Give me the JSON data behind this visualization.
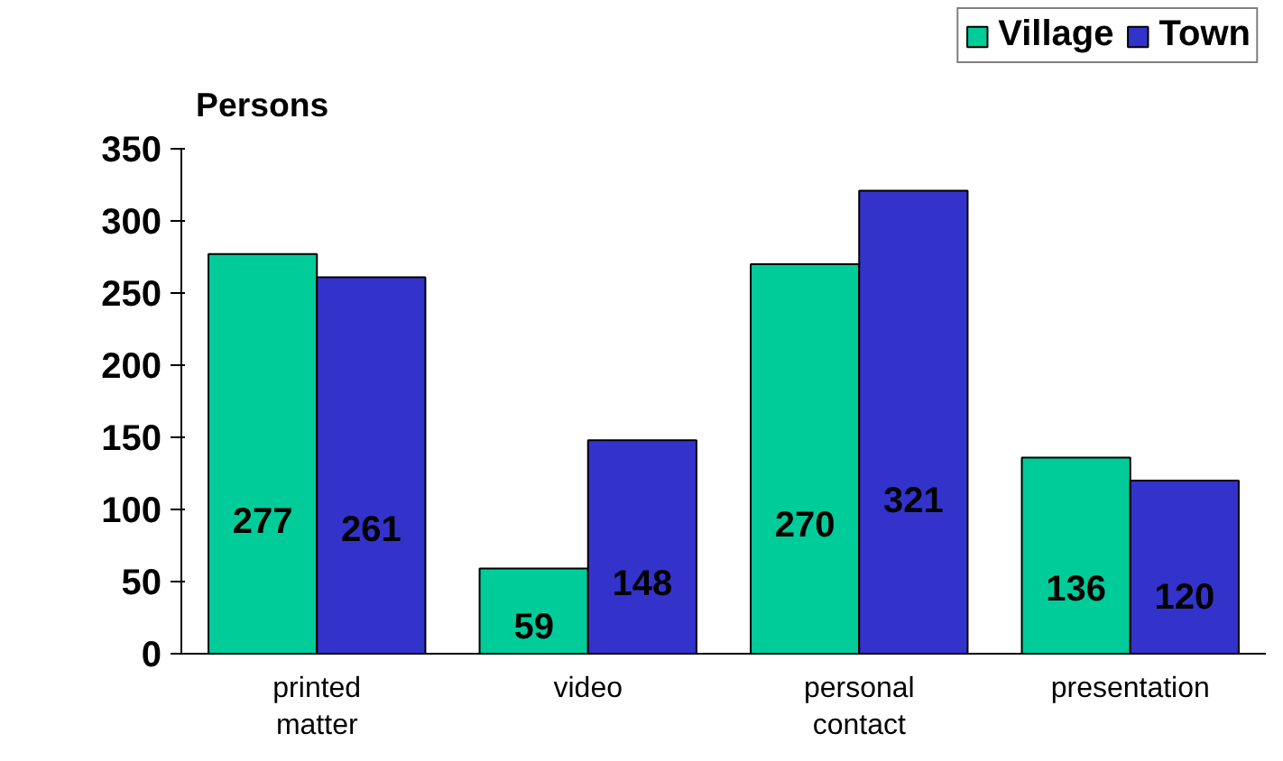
{
  "chart_data": {
    "type": "bar",
    "ylabel": "Persons",
    "categories": [
      "printed matter",
      "video",
      "personal contact",
      "presentation"
    ],
    "series": [
      {
        "name": "Village",
        "color": "#00cc99",
        "values": [
          277,
          59,
          270,
          136
        ]
      },
      {
        "name": "Town",
        "color": "#3333cc",
        "values": [
          261,
          148,
          321,
          120
        ]
      }
    ],
    "ylim": [
      0,
      350
    ],
    "yticks": [
      0,
      50,
      100,
      150,
      200,
      250,
      300,
      350
    ],
    "data_labels": true,
    "legend": "top right",
    "grid": false
  }
}
